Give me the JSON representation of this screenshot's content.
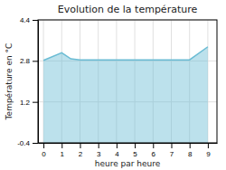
{
  "chart_data": {
    "type": "area",
    "title": "Evolution de la température",
    "xlabel": "heure par heure",
    "ylabel": "Température en °C",
    "x": [
      0,
      1,
      1.5,
      2,
      3,
      4,
      5,
      6,
      7,
      8,
      9
    ],
    "values": [
      2.82,
      3.12,
      2.88,
      2.84,
      2.84,
      2.84,
      2.84,
      2.84,
      2.84,
      2.84,
      3.35
    ],
    "color": "#6bbcd4",
    "xlim": [
      -0.3,
      9.5
    ],
    "xticks": [
      0,
      1,
      2,
      3,
      4,
      5,
      6,
      7,
      8,
      9
    ],
    "ylim": [
      -0.4,
      4.4
    ],
    "yticks": [
      -0.4,
      1.2,
      2.8,
      4.4
    ],
    "grid": true
  }
}
